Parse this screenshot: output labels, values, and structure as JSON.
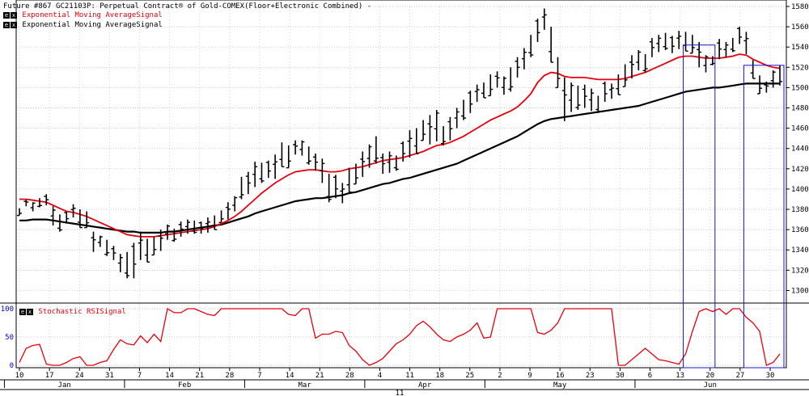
{
  "header": {
    "title": "Future #867 GC21103P: Perpetual Contract® of Gold-COMEX(Floor+Electronic Combined) -",
    "buttons": [
      "e",
      "x"
    ],
    "indicator1": "Exponential Moving AverageSignal",
    "indicator2": "Exponential Moving AverageSignal",
    "indicator3": "Stochastic RSISignal"
  },
  "colors": {
    "background": "#ffffff",
    "price": "#000000",
    "ema_fast": "#e8000c",
    "ema_slow": "#000000",
    "stoch": "#e8000c",
    "grid": "#b4b4b4",
    "highlight": "#1515d0",
    "axis_text": "#000000",
    "stoch_axis_text": "#0000cc"
  },
  "chart_data": [
    {
      "type": "ohlc",
      "ylim": [
        1290,
        1580
      ],
      "yticks": [
        1300,
        1320,
        1340,
        1360,
        1380,
        1400,
        1420,
        1440,
        1460,
        1480,
        1500,
        1520,
        1540,
        1560,
        1580
      ],
      "x_labels": [
        "10",
        "17",
        "24",
        "31",
        "7",
        "14",
        "21",
        "28",
        "7",
        "14",
        "21",
        "28",
        "4",
        "11",
        "18",
        "25",
        "2",
        "9",
        "16",
        "23",
        "30",
        "6",
        "13",
        "20",
        "27",
        "30"
      ],
      "month_labels": [
        "Jan",
        "Feb",
        "Mar",
        "Apr",
        "May",
        "Jun"
      ],
      "year_label": "11",
      "bars": [
        [
          1374,
          1381
        ],
        [
          1383,
          1390
        ],
        [
          1378,
          1387
        ],
        [
          1382,
          1391
        ],
        [
          1384,
          1395
        ],
        [
          1364,
          1383
        ],
        [
          1358,
          1375
        ],
        [
          1366,
          1378
        ],
        [
          1372,
          1385
        ],
        [
          1362,
          1380
        ],
        [
          1362,
          1378
        ],
        [
          1338,
          1358
        ],
        [
          1343,
          1354
        ],
        [
          1334,
          1350
        ],
        [
          1330,
          1344
        ],
        [
          1318,
          1336
        ],
        [
          1312,
          1338
        ],
        [
          1312,
          1347
        ],
        [
          1330,
          1358
        ],
        [
          1328,
          1351
        ],
        [
          1335,
          1353
        ],
        [
          1339,
          1360
        ],
        [
          1350,
          1365
        ],
        [
          1348,
          1361
        ],
        [
          1353,
          1368
        ],
        [
          1356,
          1370
        ],
        [
          1356,
          1369
        ],
        [
          1356,
          1368
        ],
        [
          1357,
          1372
        ],
        [
          1360,
          1374
        ],
        [
          1367,
          1379
        ],
        [
          1370,
          1387
        ],
        [
          1378,
          1393
        ],
        [
          1390,
          1412
        ],
        [
          1395,
          1417
        ],
        [
          1402,
          1427
        ],
        [
          1406,
          1426
        ],
        [
          1411,
          1428
        ],
        [
          1410,
          1434
        ],
        [
          1422,
          1446
        ],
        [
          1421,
          1443
        ],
        [
          1434,
          1448
        ],
        [
          1433,
          1448
        ],
        [
          1424,
          1442
        ],
        [
          1418,
          1435
        ],
        [
          1406,
          1430
        ],
        [
          1387,
          1415
        ],
        [
          1391,
          1414
        ],
        [
          1386,
          1406
        ],
        [
          1397,
          1421
        ],
        [
          1405,
          1425
        ],
        [
          1412,
          1437
        ],
        [
          1421,
          1444
        ],
        [
          1425,
          1452
        ],
        [
          1415,
          1435
        ],
        [
          1416,
          1437
        ],
        [
          1418,
          1433
        ],
        [
          1427,
          1447
        ],
        [
          1431,
          1458
        ],
        [
          1435,
          1460
        ],
        [
          1448,
          1468
        ],
        [
          1444,
          1473
        ],
        [
          1447,
          1478
        ],
        [
          1443,
          1462
        ],
        [
          1448,
          1471
        ],
        [
          1460,
          1480
        ],
        [
          1468,
          1488
        ],
        [
          1475,
          1497
        ],
        [
          1486,
          1503
        ],
        [
          1490,
          1505
        ],
        [
          1492,
          1513
        ],
        [
          1500,
          1516
        ],
        [
          1493,
          1511
        ],
        [
          1496,
          1520
        ],
        [
          1510,
          1530
        ],
        [
          1518,
          1539
        ],
        [
          1530,
          1552
        ],
        [
          1545,
          1568
        ],
        [
          1557,
          1578
        ],
        [
          1525,
          1560
        ],
        [
          1500,
          1530
        ],
        [
          1467,
          1510
        ],
        [
          1476,
          1505
        ],
        [
          1478,
          1502
        ],
        [
          1480,
          1503
        ],
        [
          1477,
          1499
        ],
        [
          1475,
          1492
        ],
        [
          1486,
          1506
        ],
        [
          1489,
          1504
        ],
        [
          1493,
          1513
        ],
        [
          1501,
          1523
        ],
        [
          1509,
          1532
        ],
        [
          1517,
          1537
        ],
        [
          1515,
          1533
        ],
        [
          1530,
          1549
        ],
        [
          1535,
          1552
        ],
        [
          1537,
          1554
        ],
        [
          1534,
          1551
        ],
        [
          1538,
          1556
        ],
        [
          1536,
          1555
        ],
        [
          1534,
          1552
        ],
        [
          1520,
          1545
        ],
        [
          1515,
          1532
        ],
        [
          1522,
          1531
        ],
        [
          1528,
          1548
        ],
        [
          1530,
          1545
        ],
        [
          1535,
          1549
        ],
        [
          1543,
          1560
        ],
        [
          1533,
          1555
        ],
        [
          1509,
          1527
        ],
        [
          1494,
          1512
        ],
        [
          1495,
          1506
        ],
        [
          1500,
          1517
        ],
        [
          1502,
          1522
        ]
      ],
      "ema_fast": [
        1390,
        1390,
        1389,
        1388,
        1387,
        1384,
        1381,
        1378,
        1377,
        1375,
        1373,
        1370,
        1367,
        1364,
        1361,
        1358,
        1355,
        1354,
        1353,
        1353,
        1353,
        1354,
        1355,
        1356,
        1357,
        1358,
        1359,
        1360,
        1361,
        1363,
        1366,
        1369,
        1373,
        1378,
        1384,
        1390,
        1396,
        1401,
        1406,
        1410,
        1414,
        1417,
        1418,
        1419,
        1419,
        1418,
        1417,
        1417,
        1418,
        1420,
        1421,
        1422,
        1424,
        1426,
        1428,
        1429,
        1430,
        1431,
        1433,
        1435,
        1437,
        1440,
        1443,
        1444,
        1446,
        1449,
        1452,
        1456,
        1460,
        1464,
        1468,
        1471,
        1474,
        1477,
        1481,
        1487,
        1494,
        1505,
        1512,
        1515,
        1514,
        1511,
        1510,
        1510,
        1510,
        1509,
        1508,
        1508,
        1508,
        1508,
        1509,
        1511,
        1513,
        1515,
        1518,
        1521,
        1524,
        1527,
        1530,
        1531,
        1531,
        1530,
        1529,
        1529,
        1529,
        1530,
        1531,
        1533,
        1532,
        1528,
        1525,
        1522,
        1520,
        1519
      ],
      "ema_slow": [
        1369,
        1369,
        1370,
        1370,
        1370,
        1369,
        1368,
        1367,
        1366,
        1365,
        1364,
        1363,
        1362,
        1361,
        1360,
        1359,
        1358,
        1358,
        1357,
        1357,
        1357,
        1357,
        1358,
        1358,
        1359,
        1360,
        1361,
        1362,
        1363,
        1364,
        1365,
        1367,
        1369,
        1371,
        1373,
        1376,
        1378,
        1380,
        1382,
        1384,
        1386,
        1388,
        1389,
        1390,
        1391,
        1391,
        1392,
        1393,
        1394,
        1396,
        1397,
        1399,
        1401,
        1403,
        1405,
        1406,
        1408,
        1410,
        1411,
        1413,
        1415,
        1417,
        1419,
        1421,
        1423,
        1425,
        1428,
        1431,
        1434,
        1437,
        1440,
        1443,
        1446,
        1449,
        1452,
        1456,
        1460,
        1464,
        1467,
        1469,
        1470,
        1471,
        1472,
        1473,
        1474,
        1475,
        1476,
        1477,
        1478,
        1479,
        1480,
        1481,
        1482,
        1484,
        1486,
        1488,
        1490,
        1492,
        1494,
        1496,
        1497,
        1498,
        1499,
        1500,
        1500,
        1501,
        1502,
        1503,
        1504,
        1504,
        1504,
        1504,
        1504,
        1504
      ]
    },
    {
      "type": "line",
      "ylim": [
        0,
        100
      ],
      "yticks": [
        0,
        50,
        100
      ],
      "values": [
        5,
        30,
        35,
        37,
        2,
        0,
        0,
        5,
        12,
        15,
        0,
        0,
        5,
        8,
        28,
        45,
        38,
        36,
        52,
        40,
        55,
        42,
        100,
        93,
        93,
        100,
        100,
        95,
        90,
        88,
        100,
        100,
        100,
        100,
        100,
        100,
        100,
        100,
        100,
        100,
        90,
        88,
        100,
        100,
        48,
        55,
        55,
        60,
        58,
        35,
        25,
        10,
        0,
        5,
        12,
        25,
        38,
        45,
        55,
        70,
        78,
        68,
        55,
        45,
        42,
        50,
        55,
        62,
        75,
        48,
        50,
        100,
        100,
        100,
        100,
        100,
        100,
        58,
        55,
        62,
        75,
        100,
        100,
        100,
        100,
        100,
        100,
        100,
        100,
        0,
        0,
        10,
        20,
        30,
        20,
        10,
        8,
        5,
        2,
        20,
        60,
        95,
        100,
        95,
        100,
        90,
        100,
        100,
        85,
        75,
        60,
        0,
        5,
        20
      ]
    }
  ]
}
